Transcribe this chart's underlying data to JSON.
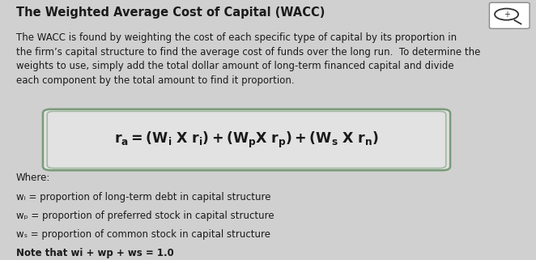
{
  "bg_color": "#d0d0d0",
  "title": "The Weighted Average Cost of Capital (WACC)",
  "body_text": "The WACC is found by weighting the cost of each specific type of capital by its proportion in\nthe firm’s capital structure to find the average cost of funds over the long run.  To determine the\nweights to use, simply add the total dollar amount of long-term financed capital and divide\neach component by the total amount to find it proportion.",
  "formula_plain": "rₐ = (Wᵢ X rᵢ) + (WₚX rₚ) + (Wₛ X rₙ)",
  "formula_box_color": "#e2e2e2",
  "formula_box_edge": "#7a9a7a",
  "formula_box_edge2": "#a0b8a0",
  "where_label": "Where:",
  "where_lines": [
    "wᵢ = proportion of long-term debt in capital structure",
    "wₚ = proportion of preferred stock in capital structure",
    "wₛ = proportion of common stock in capital structure"
  ],
  "note_line": "Note that wi + wp + ws = 1.0",
  "title_fontsize": 10.5,
  "body_fontsize": 8.5,
  "formula_fontsize": 12.5,
  "where_fontsize": 8.5,
  "text_color": "#1a1a1a"
}
